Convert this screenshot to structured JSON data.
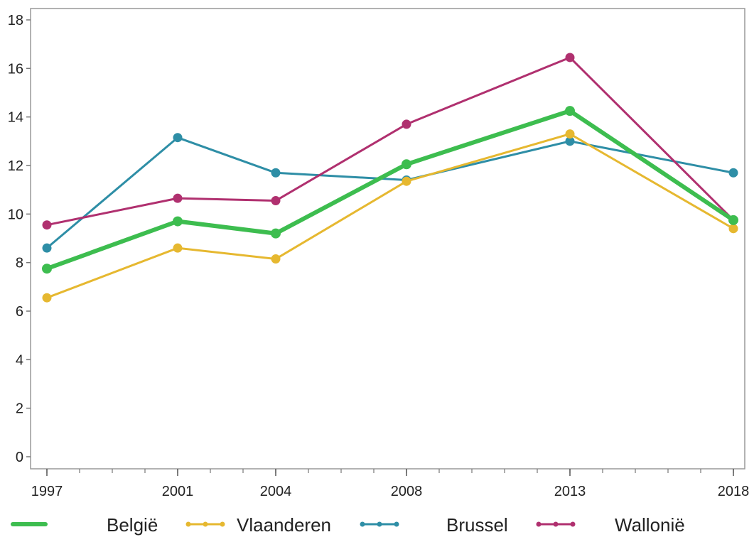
{
  "chart_data": {
    "type": "line",
    "title": "",
    "xlabel": "",
    "ylabel": "",
    "x": [
      "1997",
      "2001",
      "2004",
      "2008",
      "2013",
      "2018"
    ],
    "x_numeric": [
      1997,
      2001,
      2004,
      2008,
      2013,
      2018
    ],
    "xlim": [
      1997,
      2018
    ],
    "ylim": [
      0,
      18
    ],
    "yticks": [
      "0",
      "2",
      "4",
      "6",
      "8",
      "10",
      "12",
      "14",
      "16",
      "18"
    ],
    "grid": false,
    "legend_position": "bottom",
    "series": [
      {
        "name": "België",
        "color": "#3dbd4f",
        "values": [
          7.75,
          9.7,
          9.2,
          12.05,
          14.25,
          9.75
        ]
      },
      {
        "name": "Vlaanderen",
        "color": "#e6b830",
        "values": [
          6.55,
          8.6,
          8.15,
          11.35,
          13.3,
          9.4
        ]
      },
      {
        "name": "Brussel",
        "color": "#2e8ea6",
        "values": [
          8.6,
          13.15,
          11.7,
          11.4,
          13.0,
          11.7
        ]
      },
      {
        "name": "Wallonië",
        "color": "#b0306f",
        "values": [
          9.55,
          10.65,
          10.55,
          13.7,
          16.45,
          9.75
        ]
      }
    ]
  }
}
